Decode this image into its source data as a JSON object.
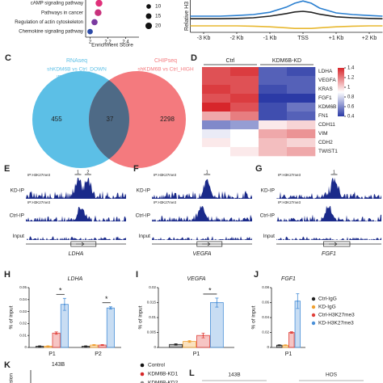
{
  "chart_data": [
    {
      "type": "dot",
      "categories": [
        "cAMP signaling pathway",
        "Pathways in cancer",
        "Regulation of actin cytoskeleton",
        "Chemokine signaling pathway"
      ],
      "values": [
        2.1,
        2.09,
        2.05,
        2.0
      ],
      "sizes": [
        22,
        22,
        18,
        14
      ],
      "colors": [
        "#e0307a",
        "#c8327c",
        "#7a3aa0",
        "#2c4aa8"
      ],
      "xlabel": "Enrichment Score",
      "xlim": [
        1.95,
        2.55
      ],
      "xticks": [
        2.0,
        2.2,
        2.4
      ],
      "size_legend": [
        10,
        15,
        20
      ]
    },
    {
      "type": "line",
      "ylabel": "Relative H3",
      "x": [
        -3.4,
        -3,
        -2.5,
        -2,
        -1.5,
        -1,
        -0.5,
        -0.25,
        0,
        0.25,
        0.5,
        1,
        1.5,
        2,
        2.4
      ],
      "xlim": [
        -3.4,
        2.4
      ],
      "ylim": [
        0,
        1
      ],
      "xticks": [
        {
          "value": -3,
          "label": "-3 Kb"
        },
        {
          "value": -2,
          "label": "-2 Kb"
        },
        {
          "value": -1,
          "label": "-1 Kb"
        },
        {
          "value": 0,
          "label": "TSS"
        },
        {
          "value": 1,
          "label": "+1 Kb"
        },
        {
          "value": 2,
          "label": "+2 Kb"
        }
      ],
      "series": [
        {
          "color": "#222222",
          "values": [
            0.42,
            0.42,
            0.42,
            0.43,
            0.45,
            0.5,
            0.58,
            0.63,
            0.65,
            0.62,
            0.56,
            0.48,
            0.45,
            0.43,
            0.42
          ]
        },
        {
          "color": "#e8b830",
          "values": [
            0.2,
            0.2,
            0.2,
            0.2,
            0.19,
            0.17,
            0.14,
            0.12,
            0.12,
            0.12,
            0.14,
            0.17,
            0.19,
            0.2,
            0.2
          ]
        },
        {
          "color": "#2a7fd0",
          "values": [
            0.5,
            0.5,
            0.5,
            0.52,
            0.55,
            0.62,
            0.78,
            0.9,
            0.97,
            0.9,
            0.75,
            0.6,
            0.55,
            0.52,
            0.5
          ]
        }
      ]
    },
    {
      "type": "venn",
      "panel": "C",
      "sets": [
        {
          "name": "RNAseq",
          "desc": [
            "shKDM6B vs Ctrl_DOWN",
            "|FC| ≥ 2, p < 0.05"
          ],
          "color": "#5cbfe6"
        },
        {
          "name": "CHIPseq",
          "desc": [
            "shKDM6B vs Ctrl_HIGH"
          ],
          "color": "#f47a7e"
        }
      ],
      "overlap_color": "#4e6a86",
      "values": [
        455,
        37,
        2298
      ]
    },
    {
      "type": "heatmap",
      "panel": "D",
      "groups": [
        {
          "name": "Ctrl",
          "columns": 2
        },
        {
          "name": "KDM6B-KD",
          "columns": 2
        }
      ],
      "rows": [
        "LDHA",
        "VEGFA",
        "KRAS",
        "FGF1",
        "KDM6B",
        "FN1",
        "CDH11",
        "VIM",
        "CDH2",
        "TWIST1"
      ],
      "matrix": [
        [
          1.3,
          1.35,
          0.5,
          0.45
        ],
        [
          1.3,
          1.3,
          0.5,
          0.5
        ],
        [
          1.35,
          1.3,
          0.45,
          0.5
        ],
        [
          1.3,
          1.35,
          0.35,
          0.4
        ],
        [
          1.4,
          1.3,
          0.45,
          0.55
        ],
        [
          1.1,
          1.2,
          0.45,
          0.5
        ],
        [
          0.6,
          0.65,
          0.95,
          1.0
        ],
        [
          0.85,
          0.9,
          1.1,
          1.15
        ],
        [
          0.95,
          0.9,
          1.05,
          1.0
        ],
        [
          0.9,
          0.95,
          1.05,
          1.1
        ]
      ],
      "clim": [
        0.4,
        1.4
      ],
      "colormap": [
        "#2b3aa6",
        "#ffffff",
        "#d7262b"
      ],
      "cticks": [
        1.4,
        1.2,
        1,
        0.8,
        0.6,
        0.4
      ]
    },
    {
      "type": "bar",
      "panel": "H",
      "title": "LDHA",
      "ylabel": "% of input",
      "categories": [
        "P1",
        "P2"
      ],
      "ylim": [
        0,
        0.05
      ],
      "yticks": [
        0,
        0.01,
        0.02,
        0.03,
        0.04,
        0.05
      ],
      "annotations": [
        "*",
        "*"
      ],
      "series": [
        {
          "color": "#222222",
          "values": [
            0.001,
            0.001
          ],
          "errors": [
            0.0003,
            0.0003
          ]
        },
        {
          "color": "#f0a030",
          "values": [
            0.001,
            0.002
          ],
          "errors": [
            0.0003,
            0.0004
          ]
        },
        {
          "color": "#e0403a",
          "values": [
            0.012,
            0.002
          ],
          "errors": [
            0.001,
            0.0004
          ]
        },
        {
          "color": "#4a90d8",
          "values": [
            0.036,
            0.033
          ],
          "errors": [
            0.005,
            0.001
          ]
        }
      ]
    },
    {
      "type": "bar",
      "panel": "I",
      "title": "VEGFA",
      "ylabel": "% of input",
      "categories": [
        "P1"
      ],
      "ylim": [
        0,
        0.02
      ],
      "yticks": [
        0,
        0.005,
        0.01,
        0.015,
        0.02
      ],
      "annotations": [
        "*"
      ],
      "series": [
        {
          "color": "#222222",
          "values": [
            0.001
          ],
          "errors": [
            0.0002
          ]
        },
        {
          "color": "#f0a030",
          "values": [
            0.002
          ],
          "errors": [
            0.0003
          ]
        },
        {
          "color": "#e0403a",
          "values": [
            0.004
          ],
          "errors": [
            0.0008
          ]
        },
        {
          "color": "#4a90d8",
          "values": [
            0.015
          ],
          "errors": [
            0.0015
          ]
        }
      ]
    },
    {
      "type": "bar",
      "panel": "J",
      "title": "FGF1",
      "ylabel": "% of input",
      "categories": [
        "P1"
      ],
      "ylim": [
        0,
        0.08
      ],
      "yticks": [
        0,
        0.02,
        0.04,
        0.06,
        0.08
      ],
      "series": [
        {
          "name": "Ctrl-IgG",
          "color": "#222222",
          "values": [
            0.003
          ],
          "errors": [
            0.0005
          ]
        },
        {
          "name": "KD-IgG",
          "color": "#f0a030",
          "values": [
            0.003
          ],
          "errors": [
            0.0005
          ]
        },
        {
          "name": "Ctrl-H3K27me3",
          "color": "#e0403a",
          "values": [
            0.02
          ],
          "errors": [
            0.001
          ]
        },
        {
          "name": "KD-H3K27me3",
          "color": "#4a90d8",
          "values": [
            0.062
          ],
          "errors": [
            0.01
          ]
        }
      ]
    }
  ],
  "tracks": {
    "color": "#1a2a8a",
    "panels": [
      {
        "panel": "E",
        "gene": "LDHA",
        "ip_labels": [
          "IP:H3K27me3",
          "IP:H3K27me3"
        ],
        "rows": [
          "KD-IP",
          "Ctrl-IP",
          "Input"
        ],
        "peaks": [
          "1",
          "2"
        ]
      },
      {
        "panel": "F",
        "gene": "VEGFA",
        "ip_labels": [
          "IP:H3K27me3",
          "IP:H3K27me3"
        ],
        "rows": [
          "KD-IP",
          "Ctrl-IP",
          "Input"
        ],
        "peaks": [
          "1"
        ]
      },
      {
        "panel": "G",
        "gene": "FGF1",
        "ip_labels": [
          "IP:H3K27me3",
          "IP:H3K27me3"
        ],
        "rows": [
          "KD-IP",
          "Ctrl-IP",
          "Input"
        ],
        "peaks": [
          "1"
        ]
      }
    ]
  },
  "panel_k": {
    "panel": "K",
    "title": "143B",
    "ylabel": "sion",
    "legend": [
      {
        "name": "Control",
        "color": "#111111"
      },
      {
        "name": "KDM6B-KD1",
        "color": "#d62728"
      },
      {
        "name": "KDM6B-KD2",
        "color": "#8a8a8a"
      }
    ]
  },
  "panel_l": {
    "panel": "L",
    "groups": [
      "143B",
      "HOS"
    ]
  }
}
